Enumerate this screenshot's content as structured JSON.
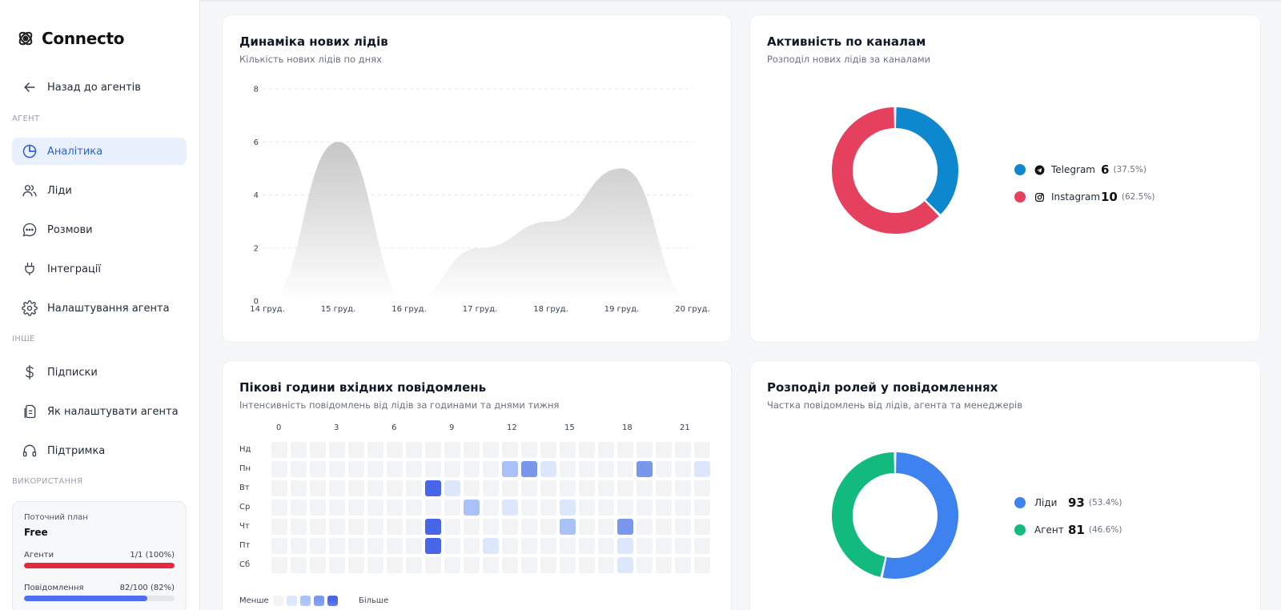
{
  "brand": {
    "name": "Connecto"
  },
  "sidebar": {
    "back": "Назад до агентів",
    "sections": {
      "agent": "АГЕНТ",
      "other": "ІНШЕ",
      "usage": "ВИКОРИСТАННЯ"
    },
    "agent_items": [
      {
        "label": "Аналітика",
        "icon": "pie-chart-icon",
        "active": true
      },
      {
        "label": "Ліди",
        "icon": "users-icon"
      },
      {
        "label": "Розмови",
        "icon": "chat-icon"
      },
      {
        "label": "Інтеграції",
        "icon": "plug-icon"
      },
      {
        "label": "Налаштування агента",
        "icon": "gear-icon"
      }
    ],
    "other_items": [
      {
        "label": "Підписки",
        "icon": "dollar-icon"
      },
      {
        "label": "Як налаштувати агента",
        "icon": "document-icon"
      },
      {
        "label": "Підтримка",
        "icon": "headphones-icon"
      }
    ],
    "plan": {
      "label": "Поточний план",
      "name": "Free",
      "agents_label": "Агенти",
      "agents_value": "1/1 (100%)",
      "agents_fill": 1.0,
      "agents_color": "#e5283d",
      "messages_label": "Повідомлення",
      "messages_value": "82/100 (82%)",
      "messages_fill": 0.82,
      "messages_color": "#4f6ef2"
    }
  },
  "leads_chart": {
    "title": "Динаміка нових лідів",
    "subtitle": "Кількість нових лідів по днях",
    "chart_data": {
      "type": "area",
      "categories": [
        "14 груд.",
        "15 груд.",
        "16 груд.",
        "17 груд.",
        "18 груд.",
        "19 груд.",
        "20 груд."
      ],
      "values": [
        0,
        6,
        0,
        2,
        3,
        5,
        0
      ],
      "ylim": [
        0,
        8
      ],
      "yticks": [
        "0",
        "2",
        "4",
        "6",
        "8"
      ],
      "grid": true,
      "color": "#c7c7c7"
    }
  },
  "channels_chart": {
    "title": "Активність по каналам",
    "subtitle": "Розподіл нових лідів за каналами",
    "chart_data": {
      "type": "pie",
      "categories": [
        "Telegram",
        "Instagram"
      ],
      "values": [
        6,
        10
      ],
      "percents": [
        "(37.5%)",
        "(62.5%)"
      ],
      "colors": [
        "#0d88cf",
        "#e5405e"
      ]
    },
    "legend": [
      {
        "name": "Telegram",
        "value": "6",
        "pct": "(37.5%)",
        "icon": "telegram-icon"
      },
      {
        "name": "Instagram",
        "value": "10",
        "pct": "(62.5%)",
        "icon": "instagram-icon"
      }
    ]
  },
  "heatmap": {
    "title": "Пікові години вхідних повідомлень",
    "subtitle": "Інтенсивність повідомлень від лідів за годинами та днями тижня",
    "chart_data": {
      "type": "heatmap",
      "hours_labels": [
        "0",
        "3",
        "6",
        "9",
        "12",
        "15",
        "18",
        "21"
      ],
      "days": [
        "Нд",
        "Пн",
        "Вт",
        "Ср",
        "Чт",
        "Пт",
        "Сб"
      ],
      "levels": [
        [
          0,
          0,
          0,
          0,
          0,
          0,
          0,
          0,
          0,
          0,
          0,
          0,
          0,
          0,
          0,
          0,
          0,
          0,
          0,
          0,
          0,
          0,
          0
        ],
        [
          0,
          0,
          0,
          0,
          0,
          0,
          0,
          0,
          0,
          0,
          0,
          0,
          2,
          3,
          1,
          0,
          0,
          0,
          0,
          3,
          0,
          0,
          1
        ],
        [
          0,
          0,
          0,
          0,
          0,
          0,
          0,
          0,
          4,
          1,
          0,
          0,
          0,
          0,
          0,
          0,
          0,
          0,
          0,
          0,
          0,
          0,
          0
        ],
        [
          0,
          0,
          0,
          0,
          0,
          0,
          0,
          0,
          0,
          0,
          2,
          0,
          1,
          0,
          0,
          1,
          0,
          0,
          0,
          0,
          0,
          0,
          0
        ],
        [
          0,
          0,
          0,
          0,
          0,
          0,
          0,
          0,
          4,
          0,
          0,
          0,
          0,
          0,
          0,
          2,
          0,
          0,
          3,
          0,
          0,
          0,
          0
        ],
        [
          0,
          0,
          0,
          0,
          0,
          0,
          0,
          0,
          4,
          0,
          0,
          1,
          0,
          0,
          0,
          0,
          0,
          0,
          1,
          0,
          0,
          0,
          0
        ],
        [
          0,
          0,
          0,
          0,
          0,
          0,
          0,
          0,
          0,
          0,
          0,
          0,
          0,
          0,
          0,
          0,
          0,
          0,
          1,
          0,
          0,
          0,
          0
        ]
      ],
      "scale_colors": [
        "#f2f3f5",
        "#dde7fb",
        "#a9c2f7",
        "#7a97ee",
        "#4766e8"
      ]
    },
    "legend_less": "Менше",
    "legend_more": "Більше"
  },
  "roles_chart": {
    "title": "Розподіл ролей у повідомленнях",
    "subtitle": "Частка повідомлень від лідів, агента та менеджерів",
    "chart_data": {
      "type": "pie",
      "categories": [
        "Ліди",
        "Агент"
      ],
      "values": [
        93,
        81
      ],
      "percents": [
        "(53.4%)",
        "(46.6%)"
      ],
      "colors": [
        "#3d82ee",
        "#12ba7d"
      ]
    },
    "legend": [
      {
        "name": "Ліди",
        "value": "93",
        "pct": "(53.4%)"
      },
      {
        "name": "Агент",
        "value": "81",
        "pct": "(46.6%)"
      }
    ]
  }
}
